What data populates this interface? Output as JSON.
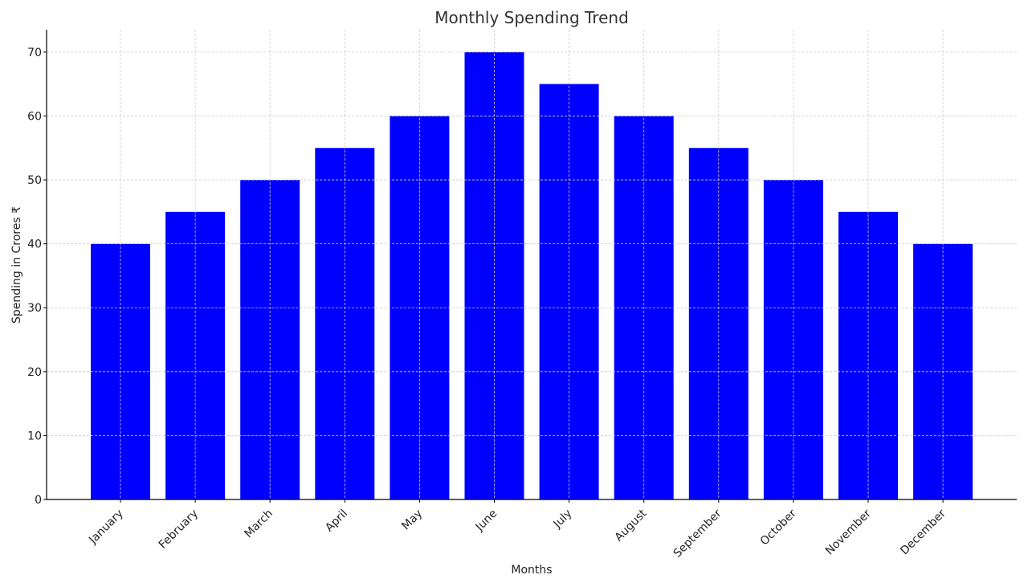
{
  "chart_data": {
    "type": "bar",
    "title": "Monthly Spending Trend",
    "xlabel": "Months",
    "ylabel": "Spending in Crores ₹",
    "categories": [
      "January",
      "February",
      "March",
      "April",
      "May",
      "June",
      "July",
      "August",
      "September",
      "October",
      "November",
      "December"
    ],
    "values": [
      40,
      45,
      50,
      55,
      60,
      70,
      65,
      60,
      55,
      50,
      45,
      40
    ],
    "ylim": [
      0,
      73.5
    ],
    "yticks": [
      0,
      10,
      20,
      30,
      40,
      50,
      60,
      70
    ],
    "grid": true,
    "bar_color": "#0000ff",
    "legend": "none"
  }
}
